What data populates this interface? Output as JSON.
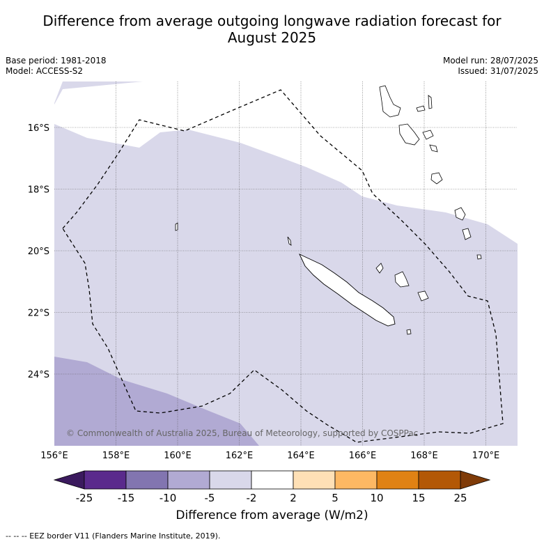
{
  "title": "Difference from average outgoing longwave radiation forecast for August 2025",
  "title_line1": "Difference from average outgoing longwave radiation forecast for",
  "title_line2": "August 2025",
  "base_period": "Base period: 1981-2018",
  "model": "Model: ACCESS-S2",
  "model_run": "Model run: 28/07/2025",
  "issued": "Issued: 31/07/2025",
  "copyright": "© Commonwealth of Australia 2025, Bureau of Meteorology, supported by COSPPac",
  "colorbar": {
    "label": "Difference from average (W/m2)",
    "ticks": [
      "-25",
      "-15",
      "-10",
      "-5",
      "-2",
      "2",
      "5",
      "10",
      "15",
      "25"
    ],
    "colors": [
      "#3b1a5e",
      "#5a2a8c",
      "#8275b0",
      "#b1aad3",
      "#d9d8ea",
      "#ffffff",
      "#fee0b6",
      "#fdb863",
      "#e08214",
      "#b35806",
      "#7f3b08"
    ]
  },
  "map": {
    "lon_range": [
      156,
      171
    ],
    "lat_range": [
      -26.5,
      -14.5
    ],
    "lon_ticks": [
      "156°E",
      "158°E",
      "160°E",
      "162°E",
      "164°E",
      "166°E",
      "168°E",
      "170°E"
    ],
    "lat_ticks": [
      "16°S",
      "18°S",
      "20°S",
      "22°S",
      "24°S"
    ]
  },
  "footer": "--  --  -- EEZ border V11 (Flanders Marine Institute, 2019)."
}
